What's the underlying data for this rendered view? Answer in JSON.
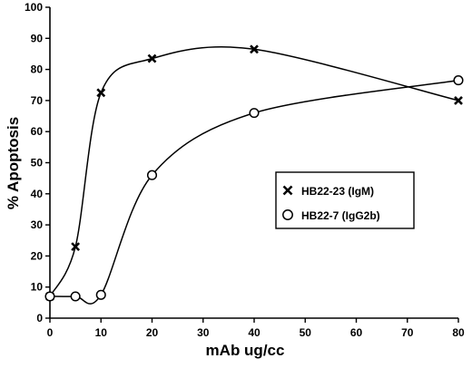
{
  "chart_data": {
    "type": "line",
    "title": "",
    "xlabel": "mAb ug/cc",
    "ylabel": "% Apoptosis",
    "xlim": [
      0,
      80
    ],
    "ylim": [
      0,
      100
    ],
    "xticks": [
      0,
      10,
      20,
      30,
      40,
      50,
      60,
      70,
      80
    ],
    "yticks": [
      0,
      10,
      20,
      30,
      40,
      50,
      60,
      70,
      80,
      90,
      100
    ],
    "grid": false,
    "legend_position": "center-right",
    "series": [
      {
        "name": "HB22-23 (IgM)",
        "marker": "x",
        "x": [
          0,
          5,
          10,
          20,
          40,
          80
        ],
        "y": [
          7,
          23,
          72.5,
          83.5,
          86.5,
          70
        ]
      },
      {
        "name": "HB22-7 (IgG2b)",
        "marker": "circle",
        "x": [
          0,
          5,
          10,
          20,
          40,
          80
        ],
        "y": [
          7,
          7,
          7.5,
          46,
          66,
          76.5
        ]
      }
    ]
  }
}
